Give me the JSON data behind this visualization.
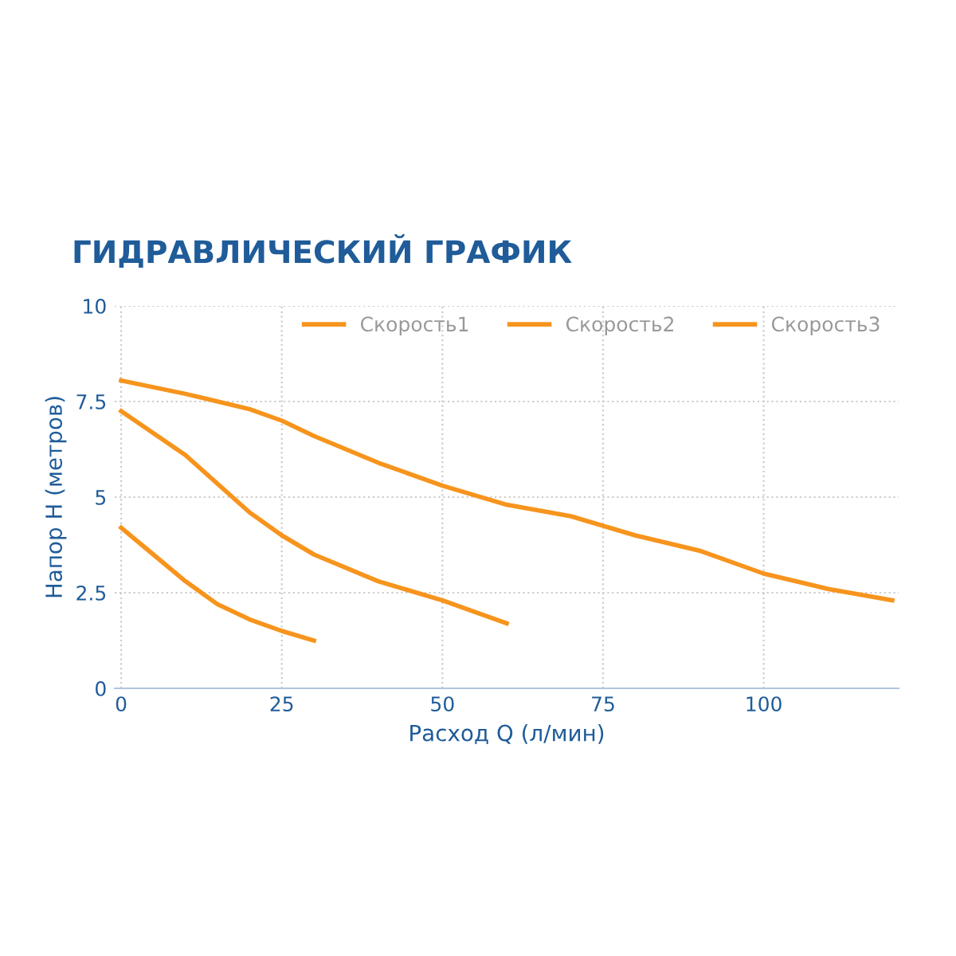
{
  "chart_data": {
    "type": "line",
    "title": "ГИДРАВЛИЧЕСКИЙ ГРАФИК",
    "xlabel": "Расход Q (л/мин)",
    "ylabel": "Напор H (метров)",
    "series": [
      {
        "name": "Скорость1",
        "color": "#f7941d",
        "x": [
          0,
          5,
          10,
          15,
          20,
          25,
          30
        ],
        "values": [
          4.2,
          3.5,
          2.8,
          2.2,
          1.8,
          1.5,
          1.25
        ]
      },
      {
        "name": "Скорость2",
        "color": "#f7941d",
        "x": [
          0,
          10,
          20,
          25,
          30,
          40,
          50,
          60
        ],
        "values": [
          7.25,
          6.1,
          4.6,
          4.0,
          3.5,
          2.8,
          2.3,
          1.7
        ]
      },
      {
        "name": "Скорость3",
        "color": "#f7941d",
        "x": [
          0,
          10,
          20,
          25,
          30,
          40,
          50,
          60,
          70,
          80,
          90,
          100,
          110,
          120
        ],
        "values": [
          8.05,
          7.7,
          7.3,
          7.0,
          6.6,
          5.9,
          5.3,
          4.8,
          4.5,
          4.0,
          3.6,
          3.0,
          2.6,
          2.3
        ]
      }
    ],
    "xlim": [
      -1,
      121
    ],
    "xticks": [
      0,
      25,
      50,
      75,
      100
    ],
    "ylim": [
      0,
      10
    ],
    "yticks": [
      0,
      2.5,
      5,
      7.5,
      10
    ],
    "grid": true,
    "legend": "top right",
    "marker": "none",
    "line_style": "solid"
  }
}
